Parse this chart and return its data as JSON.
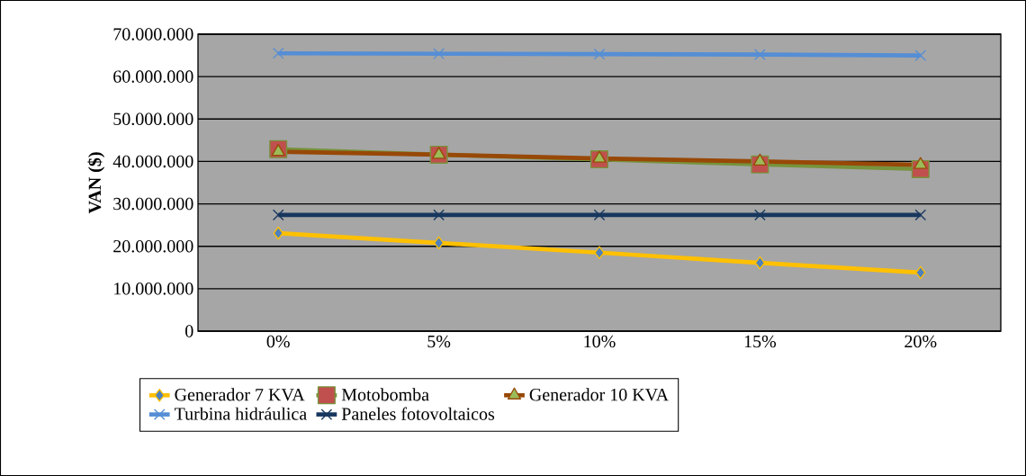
{
  "chart_data": {
    "type": "line",
    "ylabel": "VAN ($)",
    "categories": [
      "0%",
      "5%",
      "10%",
      "15%",
      "20%"
    ],
    "series": [
      {
        "name": "Generador 7 KVA",
        "color": "#ffc000",
        "marker": "diamond",
        "values": [
          23100000,
          20800000,
          18500000,
          16100000,
          13800000
        ]
      },
      {
        "name": "Motobomba",
        "color": "#77933c",
        "marker": "square",
        "values": [
          42900000,
          41600000,
          40500000,
          39300000,
          38200000
        ]
      },
      {
        "name": "Generador 10 KVA",
        "color": "#984807",
        "marker": "triangle",
        "values": [
          42300000,
          41600000,
          40700000,
          40000000,
          39200000
        ]
      },
      {
        "name": "Turbina hidráulica",
        "color": "#558ed5",
        "marker": "cross",
        "values": [
          65500000,
          65400000,
          65300000,
          65200000,
          65000000
        ]
      },
      {
        "name": "Paneles fotovoltaicos",
        "color": "#17375e",
        "marker": "cross",
        "values": [
          27400000,
          27400000,
          27400000,
          27400000,
          27400000
        ]
      }
    ],
    "ylim": [
      0,
      70000000
    ],
    "yticks": [
      0,
      {
        "value": 10000000,
        "label": "10.000.000"
      },
      {
        "value": 20000000,
        "label": "20.000.000"
      },
      {
        "value": 30000000,
        "label": "30.000.000"
      },
      {
        "value": 40000000,
        "label": "40.000.000"
      },
      {
        "value": 50000000,
        "label": "50.000.000"
      },
      {
        "value": 60000000,
        "label": "60.000.000"
      },
      {
        "value": 70000000,
        "label": "70.000.000"
      }
    ],
    "grid": "y",
    "legend": "bottom"
  }
}
